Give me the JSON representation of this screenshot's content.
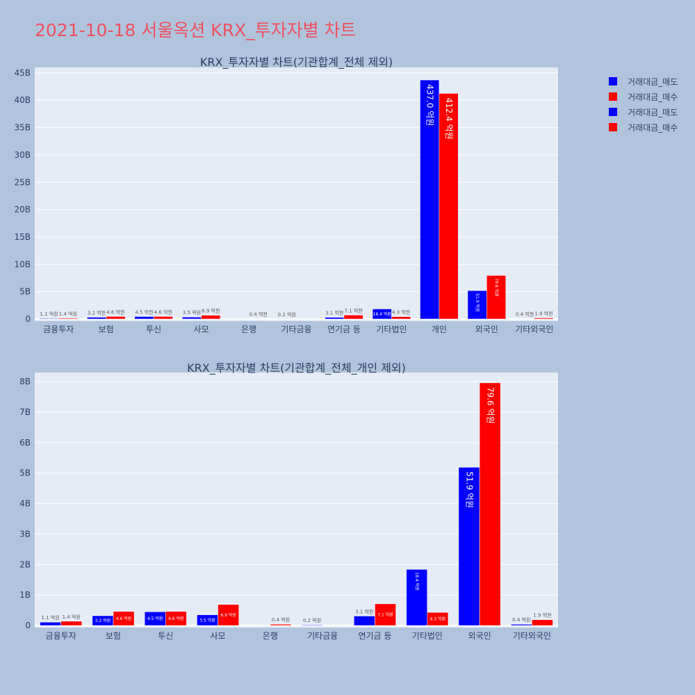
{
  "page": {
    "title": "2021-10-18 서울옥션 KRX_투자자별 차트"
  },
  "legend": {
    "items": [
      {
        "label": "거래대금_매도",
        "color": "#0000ff"
      },
      {
        "label": "거래대금_매수",
        "color": "#ff0000"
      },
      {
        "label": "거래대금_매도",
        "color": "#0000ff"
      },
      {
        "label": "거래대금_매수",
        "color": "#ff0000"
      }
    ]
  },
  "chart_data": [
    {
      "type": "bar",
      "title": "KRX_투자자별 차트(기관합계_전체 제외)",
      "categories": [
        "금융투자",
        "보험",
        "투신",
        "사모",
        "은행",
        "기타금융",
        "연기금 등",
        "기타법인",
        "개인",
        "외국인",
        "기타외국인"
      ],
      "ylim": [
        0,
        46
      ],
      "yticks": [
        0,
        5,
        10,
        15,
        20,
        25,
        30,
        35,
        40,
        45
      ],
      "ytick_labels": [
        "0",
        "5B",
        "10B",
        "15B",
        "20B",
        "25B",
        "30B",
        "35B",
        "40B",
        "45B"
      ],
      "series": [
        {
          "name": "거래대금_매도",
          "color": "#0000ff",
          "values": [
            0.11,
            0.32,
            0.45,
            0.35,
            0,
            0.02,
            0.31,
            1.84,
            43.7,
            5.19,
            0.04
          ],
          "labels": [
            "1.1 억원",
            "3.2 억원",
            "4.5 억원",
            "3.5 억원",
            "",
            "0.2 억원",
            "3.1 억원",
            "18.4 억원",
            "437.0 억원",
            "51.9 억원",
            "0.4 억원"
          ]
        },
        {
          "name": "거래대금_매수",
          "color": "#ff0000",
          "values": [
            0.14,
            0.46,
            0.46,
            0.69,
            0.04,
            0,
            0.71,
            0.43,
            41.24,
            7.96,
            0.19
          ],
          "labels": [
            "1.4 억원",
            "4.6 억원",
            "4.6 억원",
            "6.9 억원",
            "0.4 억원",
            "",
            "7.1 억원",
            "4.3 억원",
            "412.4 억원",
            "79.6 억원",
            "1.9 억원"
          ]
        }
      ],
      "grid": true
    },
    {
      "type": "bar",
      "title": "KRX_투자자별 차트(기관합계_전체_개인 제외)",
      "categories": [
        "금융투자",
        "보험",
        "투신",
        "사모",
        "은행",
        "기타금융",
        "연기금 등",
        "기타법인",
        "외국인",
        "기타외국인"
      ],
      "ylim": [
        0,
        8.3
      ],
      "yticks": [
        0,
        1,
        2,
        3,
        4,
        5,
        6,
        7,
        8
      ],
      "ytick_labels": [
        "0",
        "1B",
        "2B",
        "3B",
        "4B",
        "5B",
        "6B",
        "7B",
        "8B"
      ],
      "series": [
        {
          "name": "거래대금_매도",
          "color": "#0000ff",
          "values": [
            0.11,
            0.32,
            0.45,
            0.35,
            0,
            0.02,
            0.31,
            1.84,
            5.19,
            0.04
          ],
          "labels": [
            "1.1 억원",
            "3.2 억원",
            "4.5 억원",
            "3.5 억원",
            "",
            "0.2 억원",
            "3.1 억원",
            "18.4 억원",
            "51.9 억원",
            "0.4 억원"
          ]
        },
        {
          "name": "거래대금_매수",
          "color": "#ff0000",
          "values": [
            0.14,
            0.46,
            0.46,
            0.69,
            0.04,
            0,
            0.71,
            0.43,
            7.96,
            0.19
          ],
          "labels": [
            "1.4 억원",
            "4.6 억원",
            "4.6 억원",
            "6.9 억원",
            "0.4 억원",
            "",
            "7.1 억원",
            "4.3 억원",
            "79.6 억원",
            "1.9 억원"
          ]
        }
      ],
      "grid": true
    }
  ]
}
